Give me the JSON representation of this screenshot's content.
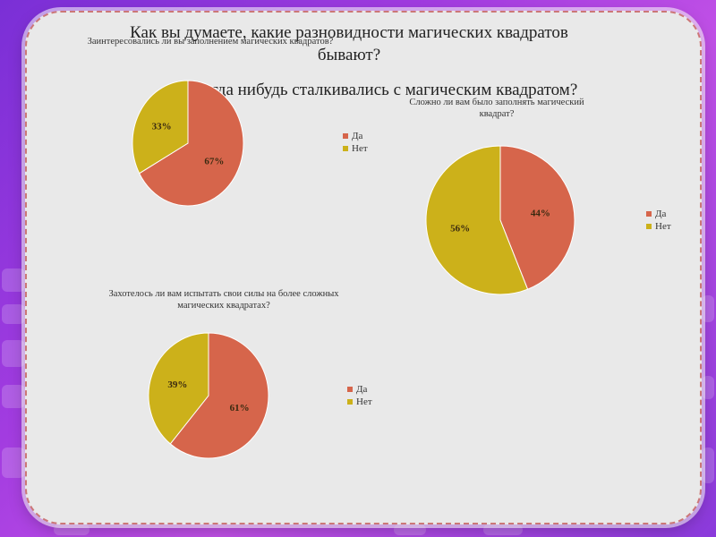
{
  "slide": {
    "title": "Как вы думаете, какие разновидности магических квадратов бывают?",
    "question2": "Когда нибудь сталкивались с магическим квадратом?"
  },
  "colors": {
    "yes": "#d6654b",
    "no": "#ccb11a"
  },
  "chart_data": [
    {
      "type": "pie",
      "title": "Заинтересовались ли вы заполнением магических квадратов?",
      "labels": [
        "Да",
        "Нет"
      ],
      "values": [
        67,
        33
      ],
      "value_labels": [
        "67%",
        "33%"
      ],
      "legend": [
        "Да",
        "Нет"
      ],
      "legend_position": "right"
    },
    {
      "type": "pie",
      "title": "Сложно ли вам было заполнять магический квадрат?",
      "labels": [
        "Да",
        "Нет"
      ],
      "values": [
        44,
        56
      ],
      "value_labels": [
        "44%",
        "56%"
      ],
      "legend": [
        "Да",
        "Нет"
      ],
      "legend_position": "right"
    },
    {
      "type": "pie",
      "title": "Захотелось ли вам испытать свои силы на более сложных магических квадратах?",
      "labels": [
        "Да",
        "Нет"
      ],
      "values": [
        61,
        39
      ],
      "value_labels": [
        "61%",
        "39%"
      ],
      "legend": [
        "Да",
        "Нет"
      ],
      "legend_position": "right"
    }
  ]
}
